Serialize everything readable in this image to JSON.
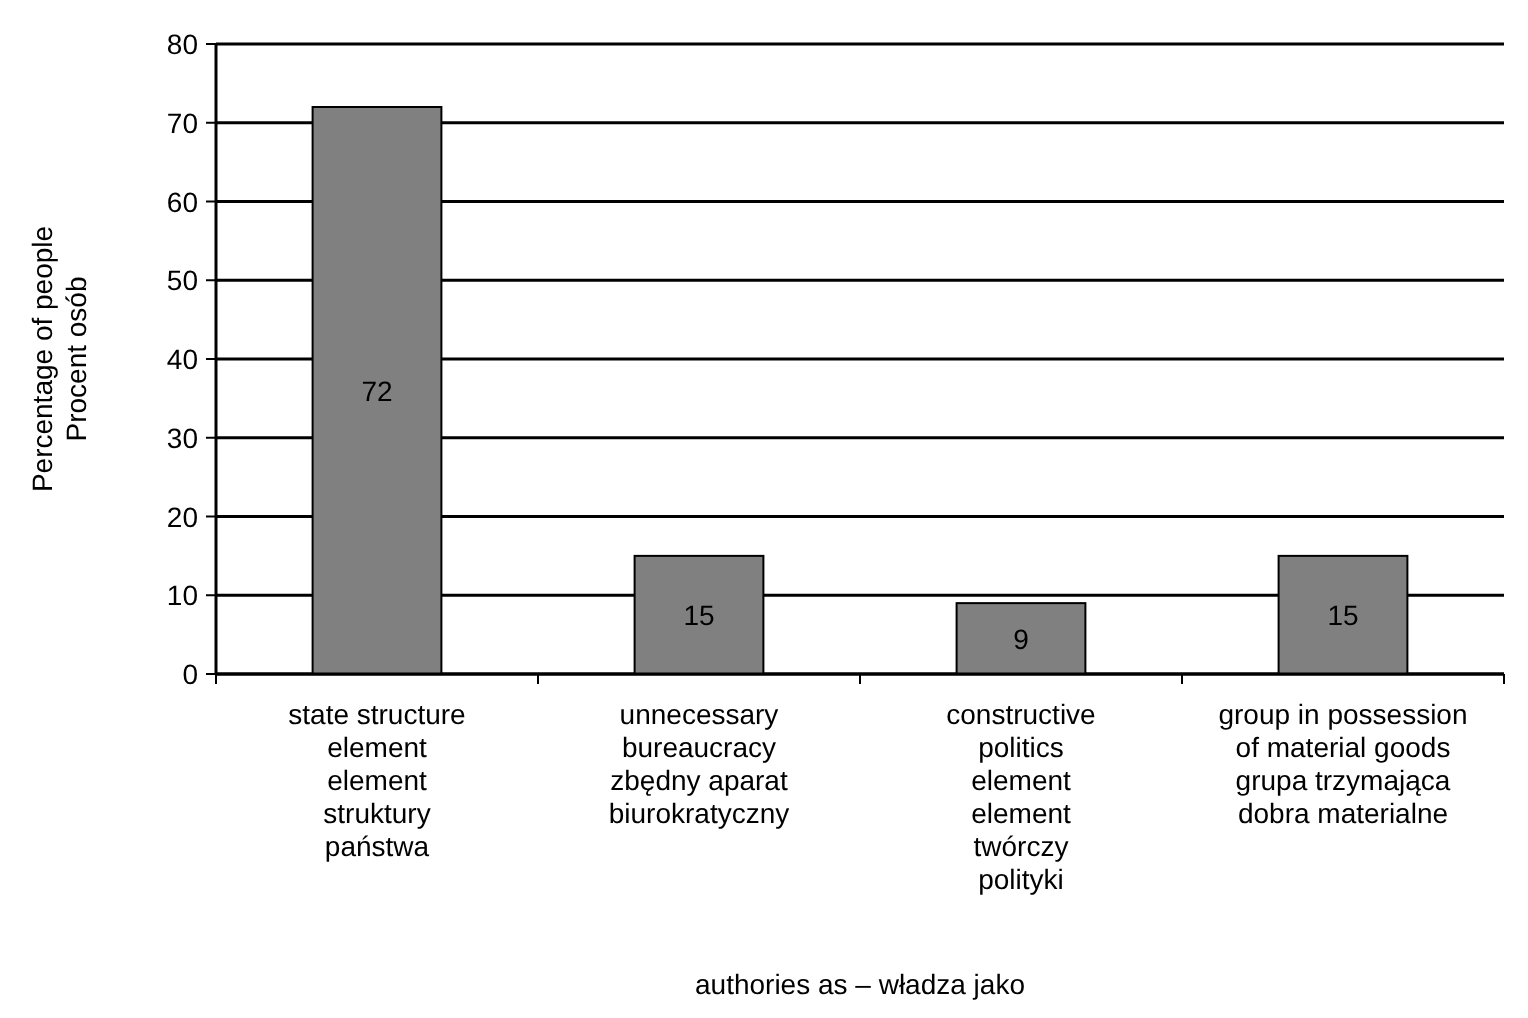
{
  "chart_data": {
    "type": "bar",
    "categories": [
      "state structure\nelement\nelement\nstruktury\npaństwa",
      "unnecessary\nbureaucracy\nzbędny aparat\nbiurokratyczny",
      "constructive\npolitics\nelement\nelement\ntwórczy\npolityki",
      "group in possession\nof material goods\ngrupa trzymająca\ndobra materialne"
    ],
    "values": [
      72,
      15,
      9,
      15
    ],
    "color": "#808080",
    "xlabel": "authories as – władza jako",
    "ylabel": "Percentage of people\nProcent osób",
    "ylim": [
      0,
      80
    ],
    "yticks": [
      0,
      10,
      20,
      30,
      40,
      50,
      60,
      70,
      80
    ],
    "grid": "y",
    "data_labels": true
  }
}
